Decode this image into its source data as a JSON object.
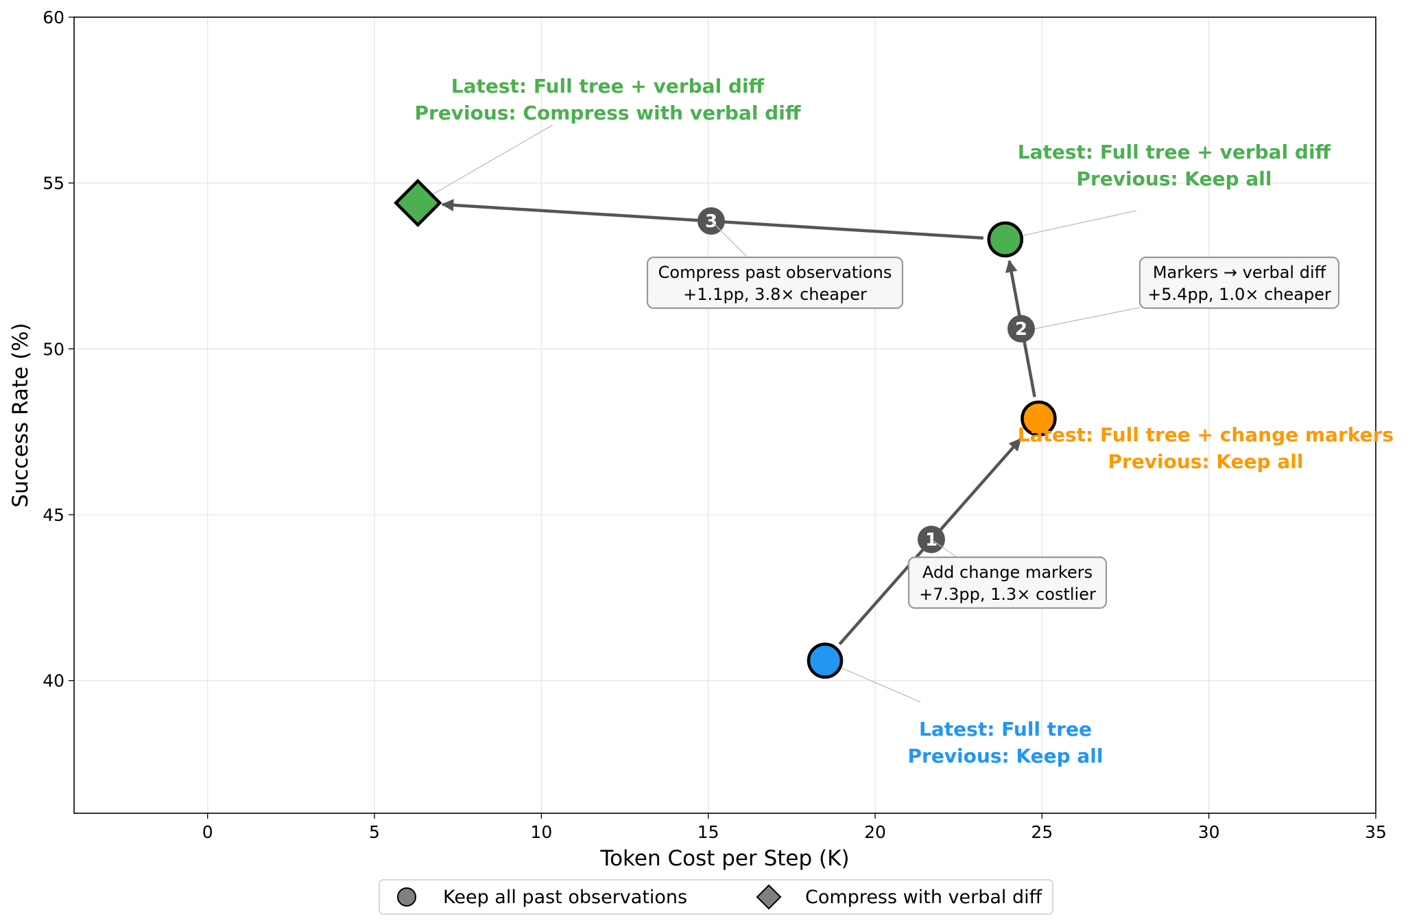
{
  "chart_data": {
    "type": "scatter",
    "xlabel": "Token Cost per Step (K)",
    "ylabel": "Success Rate (%)",
    "xlim": [
      -4,
      35
    ],
    "ylim": [
      36,
      60
    ],
    "xticks": [
      0,
      5,
      10,
      15,
      20,
      25,
      30,
      35
    ],
    "yticks": [
      40,
      45,
      50,
      55,
      60
    ],
    "grid": true,
    "legend_position": "bottom-center",
    "points": [
      {
        "x": 18.5,
        "y": 40.6,
        "marker": "circle",
        "color": "#2196F3",
        "label_lines": [
          "Latest: Full tree",
          "Previous: Keep all"
        ]
      },
      {
        "x": 24.9,
        "y": 47.9,
        "marker": "circle",
        "color": "#FF9800",
        "label_lines": [
          "Latest: Full tree + change markers",
          "Previous: Keep all"
        ]
      },
      {
        "x": 23.9,
        "y": 53.3,
        "marker": "circle",
        "color": "#4CAF50",
        "label_lines": [
          "Latest: Full tree + verbal diff",
          "Previous: Keep all"
        ]
      },
      {
        "x": 6.3,
        "y": 54.4,
        "marker": "diamond",
        "color": "#4CAF50",
        "label_lines": [
          "Latest: Full tree + verbal diff",
          "Previous: Compress with verbal diff"
        ]
      }
    ],
    "steps": [
      {
        "number": "1",
        "lines": [
          "Add change markers",
          "+7.3pp, 1.3× costlier"
        ]
      },
      {
        "number": "2",
        "lines": [
          "Markers → verbal diff",
          "+5.4pp, 1.0× cheaper"
        ]
      },
      {
        "number": "3",
        "lines": [
          "Compress past observations",
          "+1.1pp, 3.8× cheaper"
        ]
      }
    ],
    "legend": [
      {
        "marker": "circle",
        "label": "Keep all past observations"
      },
      {
        "marker": "diamond",
        "label": "Compress with verbal diff"
      }
    ],
    "colors": {
      "arrow": "#555555",
      "step_circle": "#555555",
      "grid": "#e6e6e6"
    }
  }
}
